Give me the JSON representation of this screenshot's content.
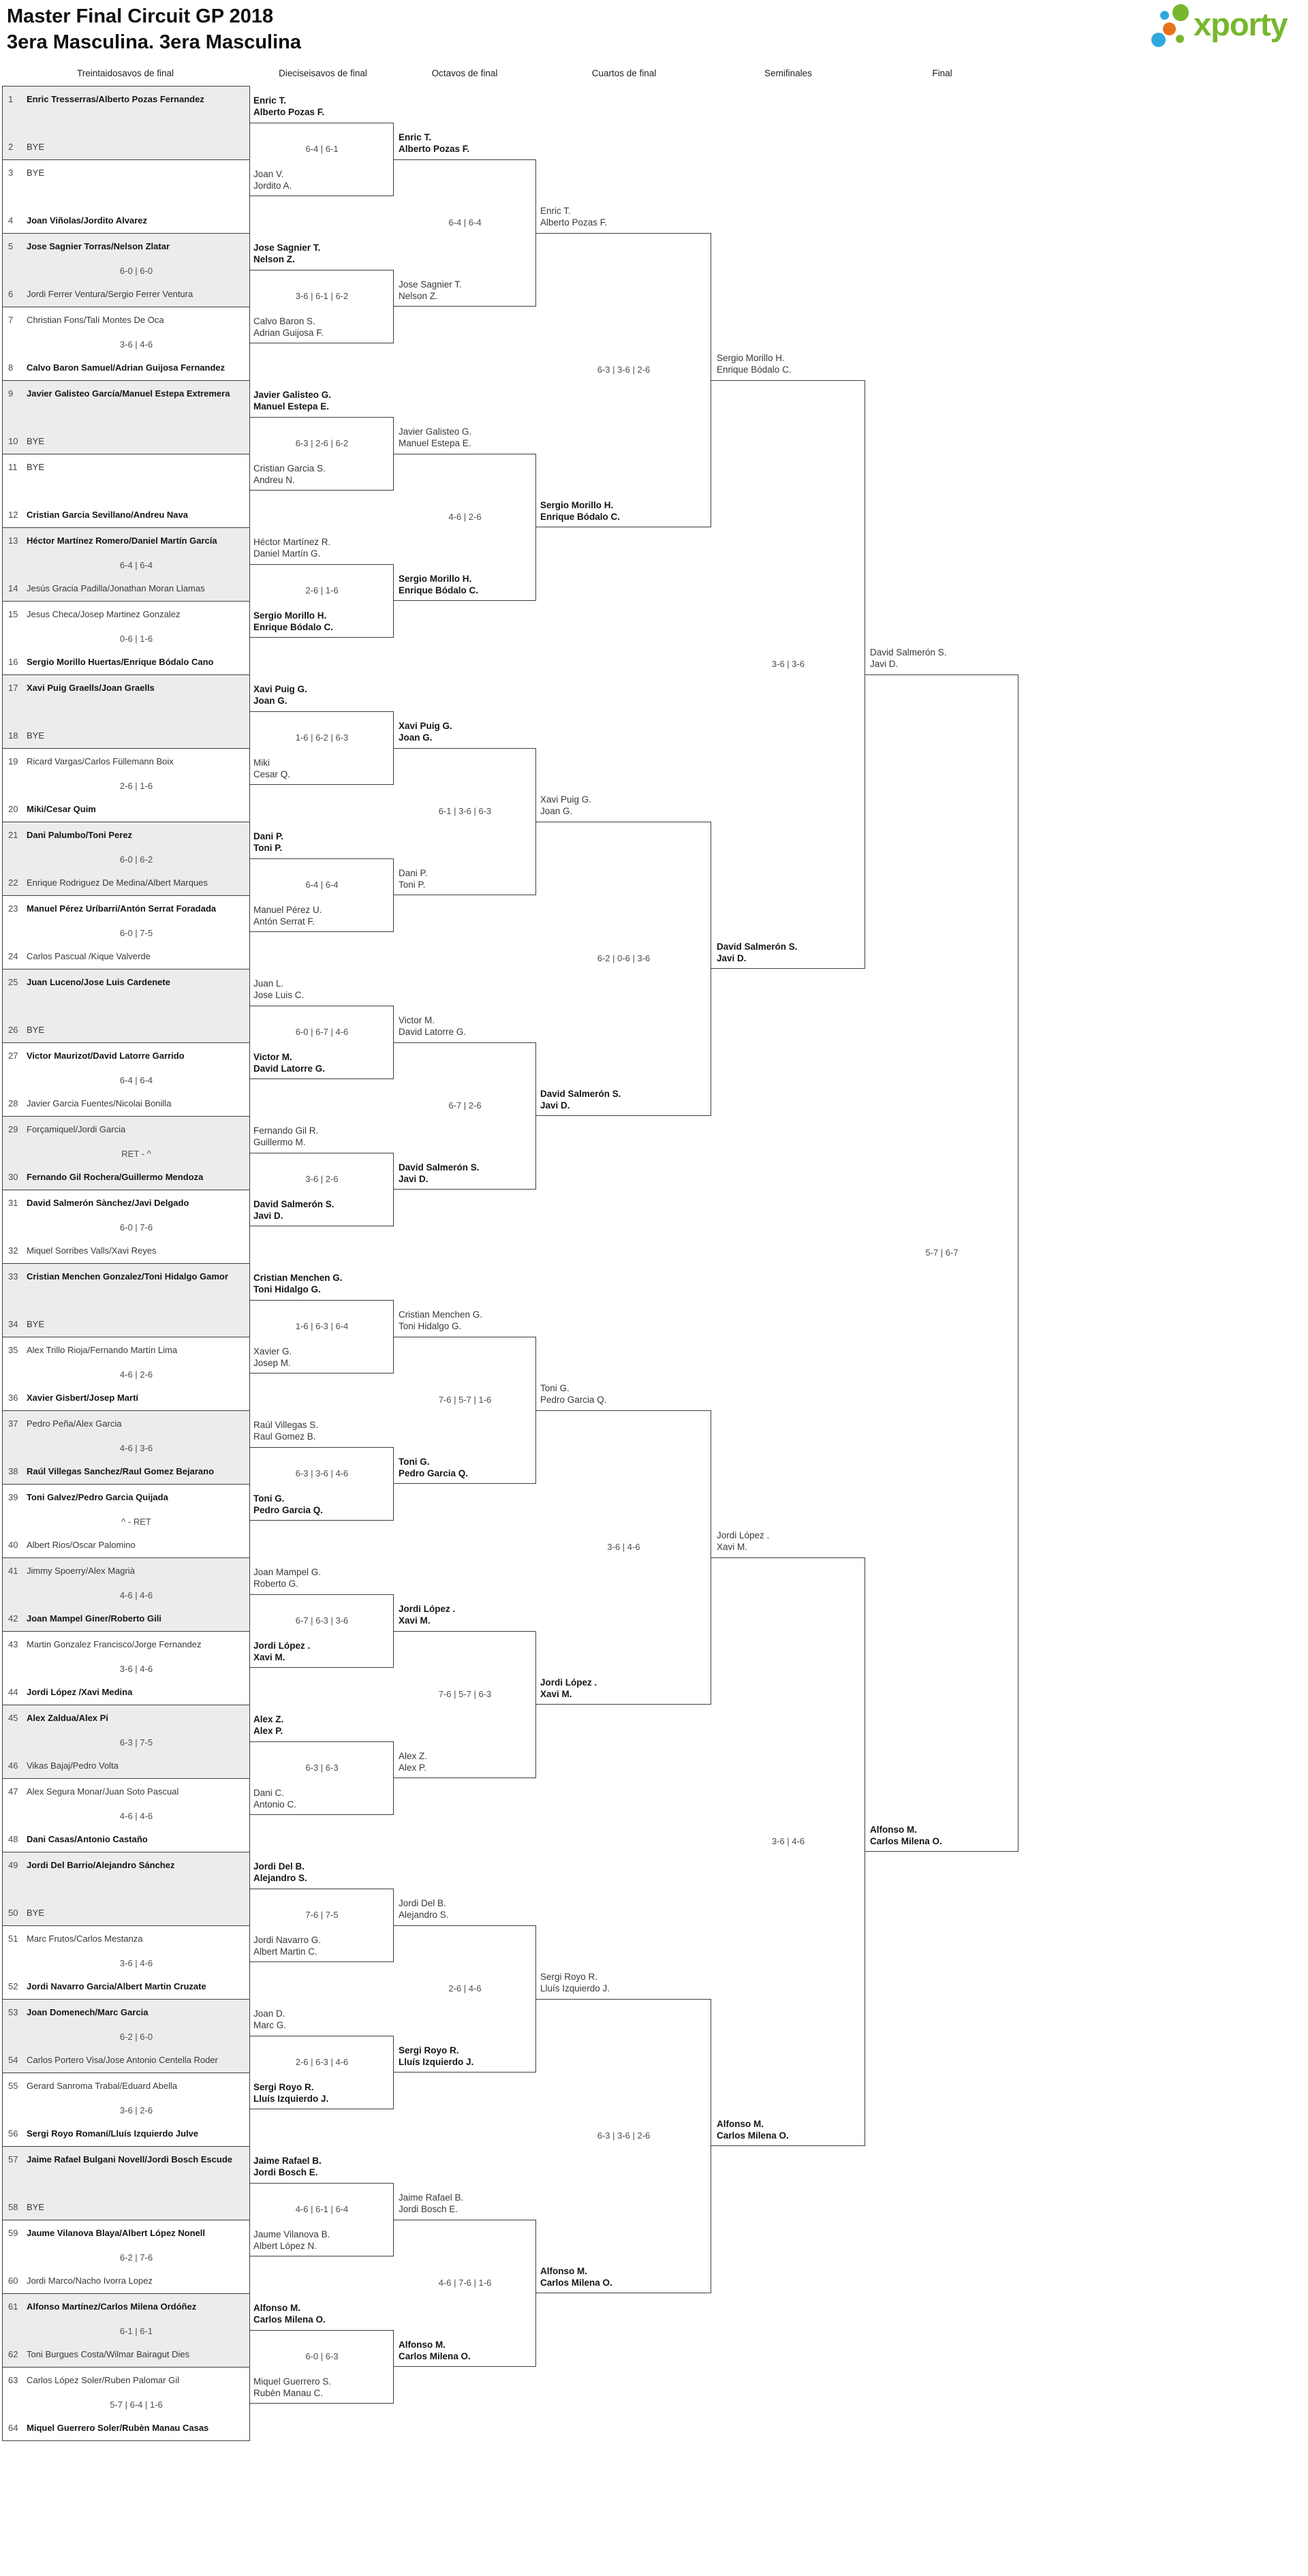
{
  "title": "Master Final Circuit GP 2018",
  "subtitle": "3era Masculina. 3era Masculina",
  "logo": {
    "text": "xporty",
    "green": "#76b72e",
    "blue": "#2ea9dd",
    "orange": "#e6731b"
  },
  "round_headers": [
    "Treintaidosavos de final",
    "Dieciseisavos de final",
    "Octavos de final",
    "Cuartos de final",
    "Semifinales",
    "Final"
  ],
  "colors": {
    "line": "#3e3e3e",
    "shaded_match": "#ececec",
    "score_text": "#4d4d4d"
  },
  "bracket": {
    "round64": [
      {
        "n": 1,
        "name": "Enric Tresserras/Alberto Pozas Fernandez",
        "w": true
      },
      {
        "n": 2,
        "name": "BYE",
        "w": false
      },
      {
        "n": 3,
        "name": "BYE",
        "w": false
      },
      {
        "n": 4,
        "name": "Joan Viñolas/Jordito Alvarez",
        "w": true
      },
      {
        "n": 5,
        "name": "Jose Sagnier Torras/Nelson Zlatar",
        "w": true
      },
      {
        "n": 6,
        "name": "Jordi Ferrer Ventura/Sergio Ferrer Ventura",
        "w": false
      },
      {
        "n": 7,
        "name": "Christian Fons/Talí Montes De Oca",
        "w": false
      },
      {
        "n": 8,
        "name": "Calvo Baron Samuel/Adrian Guijosa Fernandez",
        "w": true
      },
      {
        "n": 9,
        "name": "Javier Galisteo García/Manuel Estepa Extremera",
        "w": true
      },
      {
        "n": 10,
        "name": "BYE",
        "w": false
      },
      {
        "n": 11,
        "name": "BYE",
        "w": false
      },
      {
        "n": 12,
        "name": "Cristian Garcia Sevillano/Andreu Nava",
        "w": true
      },
      {
        "n": 13,
        "name": "Héctor Martínez Romero/Daniel Martín García",
        "w": true
      },
      {
        "n": 14,
        "name": "Jesús Gracia Padilla/Jonathan Moran Llamas",
        "w": false
      },
      {
        "n": 15,
        "name": "Jesus Checa/Josep Martinez Gonzalez",
        "w": false
      },
      {
        "n": 16,
        "name": "Sergio Morillo Huertas/Enrique Bódalo Cano",
        "w": true
      },
      {
        "n": 17,
        "name": "Xavi Puig Graells/Joan Graells",
        "w": true
      },
      {
        "n": 18,
        "name": "BYE",
        "w": false
      },
      {
        "n": 19,
        "name": "Ricard Vargas/Carlos Füllemann Boix",
        "w": false
      },
      {
        "n": 20,
        "name": "Miki/Cesar Quim",
        "w": true
      },
      {
        "n": 21,
        "name": "Dani Palumbo/Toni Perez",
        "w": true
      },
      {
        "n": 22,
        "name": "Enrique Rodriguez De Medina/Albert Marques",
        "w": false
      },
      {
        "n": 23,
        "name": "Manuel Pérez Uríbarri/Antón Serrat Foradada",
        "w": true
      },
      {
        "n": 24,
        "name": "Carlos Pascual /Kique Valverde",
        "w": false
      },
      {
        "n": 25,
        "name": "Juan Luceno/Jose Luis Cardenete",
        "w": true
      },
      {
        "n": 26,
        "name": "BYE",
        "w": false
      },
      {
        "n": 27,
        "name": "Victor Maurizot/David Latorre Garrido",
        "w": true
      },
      {
        "n": 28,
        "name": "Javier Garcia Fuentes/Nicolai Bonilla",
        "w": false
      },
      {
        "n": 29,
        "name": "Forçamiquel/Jordi Garcia",
        "w": false
      },
      {
        "n": 30,
        "name": "Fernando Gil Rochera/Guillermo Mendoza",
        "w": true
      },
      {
        "n": 31,
        "name": "David Salmerón Sànchez/Javi Delgado",
        "w": true
      },
      {
        "n": 32,
        "name": "Miquel Sorribes Valls/Xavi Reyes",
        "w": false
      },
      {
        "n": 33,
        "name": "Cristian Menchen Gonzalez/Toni Hidalgo Gamor",
        "w": true
      },
      {
        "n": 34,
        "name": "BYE",
        "w": false
      },
      {
        "n": 35,
        "name": "Alex Trillo Rioja/Fernando Martín Lima",
        "w": false
      },
      {
        "n": 36,
        "name": "Xavier Gisbert/Josep Martí",
        "w": true
      },
      {
        "n": 37,
        "name": "Pedro Peña/Alex Garcia",
        "w": false
      },
      {
        "n": 38,
        "name": "Raúl Villegas Sanchez/Raul Gomez Bejarano",
        "w": true
      },
      {
        "n": 39,
        "name": "Toni Galvez/Pedro Garcia Quijada",
        "w": true
      },
      {
        "n": 40,
        "name": "Albert Rios/Oscar Palomino",
        "w": false
      },
      {
        "n": 41,
        "name": "Jimmy Spoerry/Alex Magrià",
        "w": false
      },
      {
        "n": 42,
        "name": "Joan Mampel Giner/Roberto Gili",
        "w": true
      },
      {
        "n": 43,
        "name": "Martin Gonzalez Francisco/Jorge Fernandez",
        "w": false
      },
      {
        "n": 44,
        "name": "Jordi López /Xavi Medina",
        "w": true
      },
      {
        "n": 45,
        "name": "Alex Zaldua/Alex Pi",
        "w": true
      },
      {
        "n": 46,
        "name": "Vikas Bajaj/Pedro Volta",
        "w": false
      },
      {
        "n": 47,
        "name": "Alex Segura Monar/Juan Soto Pascual",
        "w": false
      },
      {
        "n": 48,
        "name": "Dani Casas/Antonio Castaño",
        "w": true
      },
      {
        "n": 49,
        "name": "Jordi Del Barrio/Alejandro Sánchez",
        "w": true
      },
      {
        "n": 50,
        "name": "BYE",
        "w": false
      },
      {
        "n": 51,
        "name": "Marc Frutos/Carlos Mestanza",
        "w": false
      },
      {
        "n": 52,
        "name": "Jordi Navarro Garcia/Albert Martin Cruzate",
        "w": true
      },
      {
        "n": 53,
        "name": "Joan Domenech/Marc Garcia",
        "w": true
      },
      {
        "n": 54,
        "name": "Carlos Portero Visa/Jose Antonio Centella Roder",
        "w": false
      },
      {
        "n": 55,
        "name": "Gerard Sanroma Trabal/Eduard Abella",
        "w": false
      },
      {
        "n": 56,
        "name": "Sergi Royo Romaní/Lluís Izquierdo Julve",
        "w": true
      },
      {
        "n": 57,
        "name": "Jaime Rafael Bulgani Novell/Jordi Bosch Escude",
        "w": true
      },
      {
        "n": 58,
        "name": "BYE",
        "w": false
      },
      {
        "n": 59,
        "name": "Jaume Vilanova Blaya/Albert López Nonell",
        "w": true
      },
      {
        "n": 60,
        "name": "Jordi Marco/Nacho Ivorra Lopez",
        "w": false
      },
      {
        "n": 61,
        "name": "Alfonso Martínez/Carlos Milena Ordóñez",
        "w": true
      },
      {
        "n": 62,
        "name": "Toni Burgues Costa/Wilmar Bairagut Dies",
        "w": false
      },
      {
        "n": 63,
        "name": "Carlos López Soler/Ruben Palomar Gil",
        "w": false
      },
      {
        "n": 64,
        "name": "Miquel Guerrero Soler/Rubèn Manau Casas",
        "w": true
      }
    ],
    "round64_scores": [
      "",
      "",
      "6-0 | 6-0",
      "3-6 | 4-6",
      "",
      "",
      "6-4 | 6-4",
      "0-6 | 1-6",
      "",
      "2-6 | 1-6",
      "6-0 | 6-2",
      "6-0 | 7-5",
      "",
      "6-4 | 6-4",
      "RET - ^",
      "6-0 | 7-6",
      "",
      "4-6 | 2-6",
      "4-6 | 3-6",
      "^ - RET",
      "4-6 | 4-6",
      "3-6 | 4-6",
      "6-3 | 7-5",
      "4-6 | 4-6",
      "",
      "3-6 | 4-6",
      "6-2 | 6-0",
      "3-6 | 2-6",
      "",
      "6-2 | 7-6",
      "6-1 | 6-1",
      "5-7 | 6-4 | 1-6"
    ],
    "round32": [
      {
        "name": "Enric T./Alberto Pozas F.",
        "w": true
      },
      {
        "name": "Joan V./Jordito A.",
        "w": false
      },
      {
        "name": "Jose Sagnier T./Nelson Z.",
        "w": true
      },
      {
        "name": "Calvo Baron S./Adrian Guijosa F.",
        "w": false
      },
      {
        "name": "Javier Galisteo G./Manuel Estepa E.",
        "w": true
      },
      {
        "name": "Cristian Garcia S./Andreu N.",
        "w": false
      },
      {
        "name": "Héctor Martínez R./Daniel Martín G.",
        "w": false
      },
      {
        "name": "Sergio Morillo H./Enrique Bódalo C.",
        "w": true
      },
      {
        "name": "Xavi Puig G./Joan G.",
        "w": true
      },
      {
        "name": "Miki/Cesar Q.",
        "w": false
      },
      {
        "name": "Dani P./Toni P.",
        "w": true
      },
      {
        "name": "Manuel Pérez U./Antón Serrat F.",
        "w": false
      },
      {
        "name": "Juan L./Jose Luis C.",
        "w": false
      },
      {
        "name": "Victor M./David Latorre G.",
        "w": true
      },
      {
        "name": "Fernando Gil R./Guillermo M.",
        "w": false
      },
      {
        "name": "David Salmerón S./Javi D.",
        "w": true
      },
      {
        "name": "Cristian Menchen G./Toni Hidalgo G.",
        "w": true
      },
      {
        "name": "Xavier G./Josep M.",
        "w": false
      },
      {
        "name": "Raúl Villegas S./Raul Gomez B.",
        "w": false
      },
      {
        "name": "Toni G./Pedro Garcia Q.",
        "w": true
      },
      {
        "name": "Joan Mampel G./Roberto G.",
        "w": false
      },
      {
        "name": "Jordi López ./Xavi M.",
        "w": true
      },
      {
        "name": "Alex Z./Alex P.",
        "w": true
      },
      {
        "name": "Dani C./Antonio C.",
        "w": false
      },
      {
        "name": "Jordi Del B./Alejandro S.",
        "w": true
      },
      {
        "name": "Jordi Navarro G./Albert Martin C.",
        "w": false
      },
      {
        "name": "Joan D./Marc G.",
        "w": false
      },
      {
        "name": "Sergi Royo R./Lluís Izquierdo J.",
        "w": true
      },
      {
        "name": "Jaime Rafael B./Jordi Bosch E.",
        "w": true
      },
      {
        "name": "Jaume Vilanova B./Albert López N.",
        "w": false
      },
      {
        "name": "Alfonso M./Carlos Milena O.",
        "w": true
      },
      {
        "name": "Miquel Guerrero S./Rubèn Manau C.",
        "w": false
      }
    ],
    "round32_scores": [
      "6-4 | 6-1",
      "3-6 | 6-1 | 6-2",
      "6-3 | 2-6 | 6-2",
      "2-6 | 1-6",
      "1-6 | 6-2 | 6-3",
      "6-4 | 6-4",
      "6-0 | 6-7 | 4-6",
      "3-6 | 2-6",
      "1-6 | 6-3 | 6-4",
      "6-3 | 3-6 | 4-6",
      "6-7 | 6-3 | 3-6",
      "6-3 | 6-3",
      "7-6 | 7-5",
      "2-6 | 6-3 | 4-6",
      "4-6 | 6-1 | 6-4",
      "6-0 | 6-3"
    ],
    "round16": [
      {
        "name": "Enric T./Alberto Pozas F.",
        "w": true
      },
      {
        "name": "Jose Sagnier T./Nelson Z.",
        "w": false
      },
      {
        "name": "Javier Galisteo G./Manuel Estepa E.",
        "w": false
      },
      {
        "name": "Sergio Morillo H./Enrique Bódalo C.",
        "w": true
      },
      {
        "name": "Xavi Puig G./Joan G.",
        "w": true
      },
      {
        "name": "Dani P./Toni P.",
        "w": false
      },
      {
        "name": "Victor M./David Latorre G.",
        "w": false
      },
      {
        "name": "David Salmerón S./Javi D.",
        "w": true
      },
      {
        "name": "Cristian Menchen G./Toni Hidalgo G.",
        "w": false
      },
      {
        "name": "Toni G./Pedro Garcia Q.",
        "w": true
      },
      {
        "name": "Jordi López ./Xavi M.",
        "w": true
      },
      {
        "name": "Alex Z./Alex P.",
        "w": false
      },
      {
        "name": "Jordi Del B./Alejandro S.",
        "w": false
      },
      {
        "name": "Sergi Royo R./Lluís Izquierdo J.",
        "w": true
      },
      {
        "name": "Jaime Rafael B./Jordi Bosch E.",
        "w": false
      },
      {
        "name": "Alfonso M./Carlos Milena O.",
        "w": true
      }
    ],
    "round16_scores": [
      "6-4 | 6-4",
      "4-6 | 2-6",
      "6-1 | 3-6 | 6-3",
      "6-7 | 2-6",
      "7-6 | 5-7 | 1-6",
      "7-6 | 5-7 | 6-3",
      "2-6 | 4-6",
      "4-6 | 7-6 | 1-6"
    ],
    "quarterfinals": [
      {
        "name": "Enric T./Alberto Pozas F.",
        "w": false
      },
      {
        "name": "Sergio Morillo H./Enrique Bódalo C.",
        "w": true
      },
      {
        "name": "Xavi Puig G./Joan G.",
        "w": false
      },
      {
        "name": "David Salmerón S./Javi D.",
        "w": true
      },
      {
        "name": "Toni G./Pedro Garcia Q.",
        "w": false
      },
      {
        "name": "Jordi López ./Xavi M.",
        "w": true
      },
      {
        "name": "Sergi Royo R./Lluís Izquierdo J.",
        "w": false
      },
      {
        "name": "Alfonso M./Carlos Milena O.",
        "w": true
      }
    ],
    "quarterfinal_scores": [
      "6-3 | 3-6 | 2-6",
      "6-2 | 0-6 | 3-6",
      "3-6 | 4-6",
      "6-3 | 3-6 | 2-6"
    ],
    "semifinals": [
      {
        "name": "Sergio Morillo H./Enrique Bódalo C.",
        "w": false
      },
      {
        "name": "David Salmerón S./Javi D.",
        "w": true
      },
      {
        "name": "Jordi López ./Xavi M.",
        "w": false
      },
      {
        "name": "Alfonso M./Carlos Milena O.",
        "w": true
      }
    ],
    "semifinal_scores": [
      "3-6 | 3-6",
      "3-6 | 4-6"
    ],
    "final": [
      {
        "name": "David Salmerón S./Javi D.",
        "w": false
      },
      {
        "name": "Alfonso M./Carlos Milena O.",
        "w": true
      }
    ],
    "final_score": "5-7 | 6-7"
  }
}
